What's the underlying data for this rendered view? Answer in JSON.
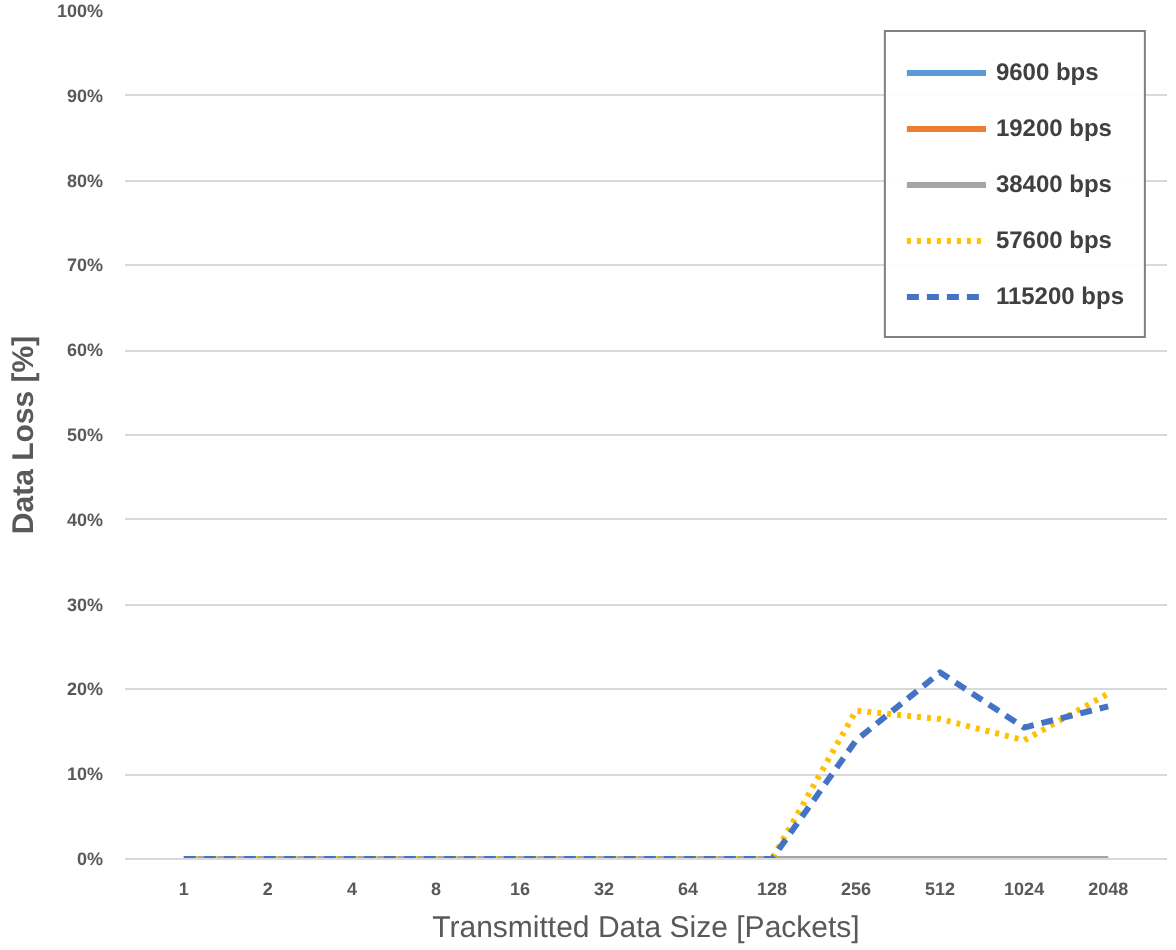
{
  "chart_data": {
    "type": "line",
    "xlabel": "Transmitted Data Size [Packets]",
    "ylabel": "Data Loss [%]",
    "categories": [
      "1",
      "2",
      "4",
      "8",
      "16",
      "32",
      "64",
      "128",
      "256",
      "512",
      "1024",
      "2048"
    ],
    "ylim": [
      0,
      100
    ],
    "yticks": [
      {
        "value": 0,
        "label": "0%"
      },
      {
        "value": 10,
        "label": "10%"
      },
      {
        "value": 20,
        "label": "20%"
      },
      {
        "value": 30,
        "label": "30%"
      },
      {
        "value": 40,
        "label": "40%"
      },
      {
        "value": 50,
        "label": "50%"
      },
      {
        "value": 60,
        "label": "60%"
      },
      {
        "value": 70,
        "label": "70%"
      },
      {
        "value": 80,
        "label": "80%"
      },
      {
        "value": 90,
        "label": "90%"
      },
      {
        "value": 100,
        "label": "100%"
      }
    ],
    "grid": "y",
    "legend": "top right",
    "series": [
      {
        "name": "9600 bps",
        "color": "#5b9bd5",
        "line_style": "solid",
        "values": [
          null,
          null,
          null,
          null,
          null,
          null,
          null,
          null,
          null,
          null,
          null,
          null
        ]
      },
      {
        "name": "19200 bps",
        "color": "#ed7d31",
        "line_style": "solid",
        "values": [
          null,
          null,
          null,
          null,
          null,
          null,
          null,
          null,
          null,
          null,
          null,
          null
        ]
      },
      {
        "name": "38400 bps",
        "color": "#a5a5a5",
        "line_style": "solid",
        "values": [
          0,
          0,
          0,
          0,
          0,
          0,
          0,
          0,
          0,
          0,
          0,
          0
        ]
      },
      {
        "name": "57600 bps",
        "color": "#ffc000",
        "line_style": "dotted",
        "values": [
          0,
          0,
          0,
          0,
          0,
          0,
          0,
          0,
          17.5,
          16.5,
          14,
          19.5
        ]
      },
      {
        "name": "115200 bps",
        "color": "#4472c4",
        "line_style": "dashed",
        "values": [
          0,
          0,
          0,
          0,
          0,
          0,
          0,
          0,
          14,
          22,
          15.5,
          18
        ]
      }
    ]
  }
}
